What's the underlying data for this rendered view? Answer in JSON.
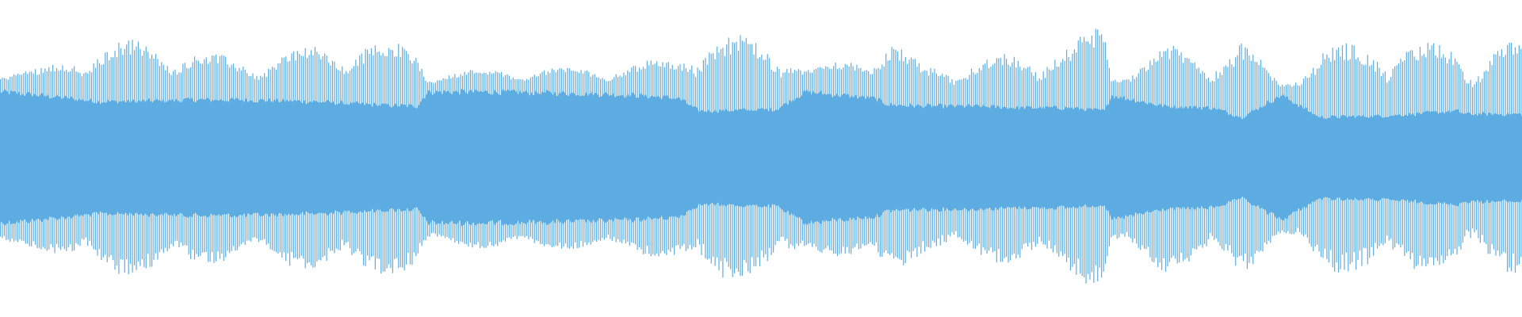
{
  "chart_data": {
    "type": "area",
    "subtype": "audio-waveform",
    "title": "",
    "xlabel": "",
    "ylabel": "",
    "axes_visible": false,
    "grid": false,
    "legend": "none",
    "color": "#5DACE2",
    "background": "#FFFFFF",
    "ylim": [
      -1,
      1
    ],
    "envelope": {
      "position_percent": [
        0,
        2.5,
        6.4,
        8.9,
        12.8,
        15.9,
        20.4,
        24.2,
        27.4,
        28.1,
        31.9,
        38.3,
        41.5,
        44.6,
        45.9,
        51.0,
        52.9,
        57.4,
        58.4,
        60.6,
        63.8,
        67.0,
        70.2,
        72.6,
        73.0,
        76.5,
        79.7,
        81.6,
        84.2,
        86.7,
        91.2,
        95.7,
        96.3,
        98.2,
        100
      ],
      "peak_amplitude": [
        0.57,
        0.57,
        0.72,
        0.76,
        0.69,
        0.63,
        0.72,
        0.76,
        0.72,
        0.54,
        0.57,
        0.58,
        0.6,
        0.66,
        0.8,
        0.76,
        0.57,
        0.69,
        0.77,
        0.6,
        0.63,
        0.69,
        0.72,
        0.89,
        0.54,
        0.72,
        0.69,
        0.76,
        0.48,
        0.72,
        0.76,
        0.72,
        0.63,
        0.74,
        0.74
      ],
      "core_amplitude": [
        0.42,
        0.4,
        0.36,
        0.36,
        0.37,
        0.37,
        0.36,
        0.34,
        0.33,
        0.42,
        0.42,
        0.41,
        0.4,
        0.38,
        0.3,
        0.31,
        0.42,
        0.38,
        0.34,
        0.33,
        0.33,
        0.32,
        0.32,
        0.3,
        0.4,
        0.33,
        0.32,
        0.26,
        0.4,
        0.26,
        0.27,
        0.3,
        0.28,
        0.28,
        0.28
      ]
    }
  }
}
